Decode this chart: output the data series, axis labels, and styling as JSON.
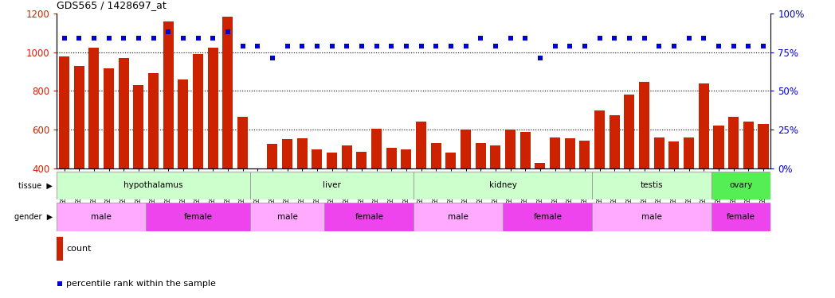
{
  "title": "GDS565 / 1428697_at",
  "samples": [
    "GSM19215",
    "GSM19216",
    "GSM19217",
    "GSM19218",
    "GSM19219",
    "GSM19220",
    "GSM19221",
    "GSM19222",
    "GSM19223",
    "GSM19224",
    "GSM19225",
    "GSM19226",
    "GSM19227",
    "GSM19228",
    "GSM19229",
    "GSM19230",
    "GSM19231",
    "GSM19232",
    "GSM19233",
    "GSM19234",
    "GSM19235",
    "GSM19236",
    "GSM19237",
    "GSM19238",
    "GSM19239",
    "GSM19240",
    "GSM19241",
    "GSM19242",
    "GSM19243",
    "GSM19244",
    "GSM19245",
    "GSM19246",
    "GSM19247",
    "GSM19248",
    "GSM19249",
    "GSM19250",
    "GSM19251",
    "GSM19252",
    "GSM19253",
    "GSM19254",
    "GSM19255",
    "GSM19256",
    "GSM19257",
    "GSM19258",
    "GSM19259",
    "GSM19260",
    "GSM19261",
    "GSM19262"
  ],
  "counts": [
    980,
    930,
    1025,
    915,
    970,
    830,
    890,
    1160,
    860,
    990,
    1025,
    1185,
    665,
    400,
    525,
    550,
    555,
    500,
    480,
    520,
    485,
    605,
    505,
    500,
    640,
    530,
    480,
    600,
    530,
    520,
    600,
    590,
    430,
    560,
    555,
    545,
    700,
    675,
    780,
    845,
    560,
    540,
    560,
    840,
    620,
    665,
    640,
    630
  ],
  "percentiles": [
    84,
    84,
    84,
    84,
    84,
    84,
    84,
    88,
    84,
    84,
    84,
    88,
    79,
    79,
    71,
    79,
    79,
    79,
    79,
    79,
    79,
    79,
    79,
    79,
    79,
    79,
    79,
    79,
    84,
    79,
    84,
    84,
    71,
    79,
    79,
    79,
    84,
    84,
    84,
    84,
    79,
    79,
    84,
    84,
    79,
    79,
    79,
    79
  ],
  "bar_color": "#cc2200",
  "dot_color": "#0000cc",
  "ylim_left": [
    400,
    1200
  ],
  "ylim_right": [
    0,
    100
  ],
  "yticks_left": [
    400,
    600,
    800,
    1000,
    1200
  ],
  "yticks_right": [
    0,
    25,
    50,
    75,
    100
  ],
  "dotted_grid_values": [
    600,
    800,
    1000
  ],
  "tissue_groups": [
    {
      "label": "hypothalamus",
      "start": 0,
      "end": 12,
      "color": "#ccffcc"
    },
    {
      "label": "liver",
      "start": 13,
      "end": 23,
      "color": "#ccffcc"
    },
    {
      "label": "kidney",
      "start": 24,
      "end": 35,
      "color": "#ccffcc"
    },
    {
      "label": "testis",
      "start": 36,
      "end": 43,
      "color": "#ccffcc"
    },
    {
      "label": "ovary",
      "start": 44,
      "end": 47,
      "color": "#55ee55"
    }
  ],
  "gender_groups": [
    {
      "label": "male",
      "start": 0,
      "end": 5,
      "color": "#ffaaff"
    },
    {
      "label": "female",
      "start": 6,
      "end": 12,
      "color": "#ee44ee"
    },
    {
      "label": "male",
      "start": 13,
      "end": 17,
      "color": "#ffaaff"
    },
    {
      "label": "female",
      "start": 18,
      "end": 23,
      "color": "#ee44ee"
    },
    {
      "label": "male",
      "start": 24,
      "end": 29,
      "color": "#ffaaff"
    },
    {
      "label": "female",
      "start": 30,
      "end": 35,
      "color": "#ee44ee"
    },
    {
      "label": "male",
      "start": 36,
      "end": 43,
      "color": "#ffaaff"
    },
    {
      "label": "female",
      "start": 44,
      "end": 47,
      "color": "#ee44ee"
    }
  ],
  "legend_count_label": "count",
  "legend_pct_label": "percentile rank within the sample",
  "axis_color_left": "#cc2200",
  "axis_color_right": "#0000cc"
}
